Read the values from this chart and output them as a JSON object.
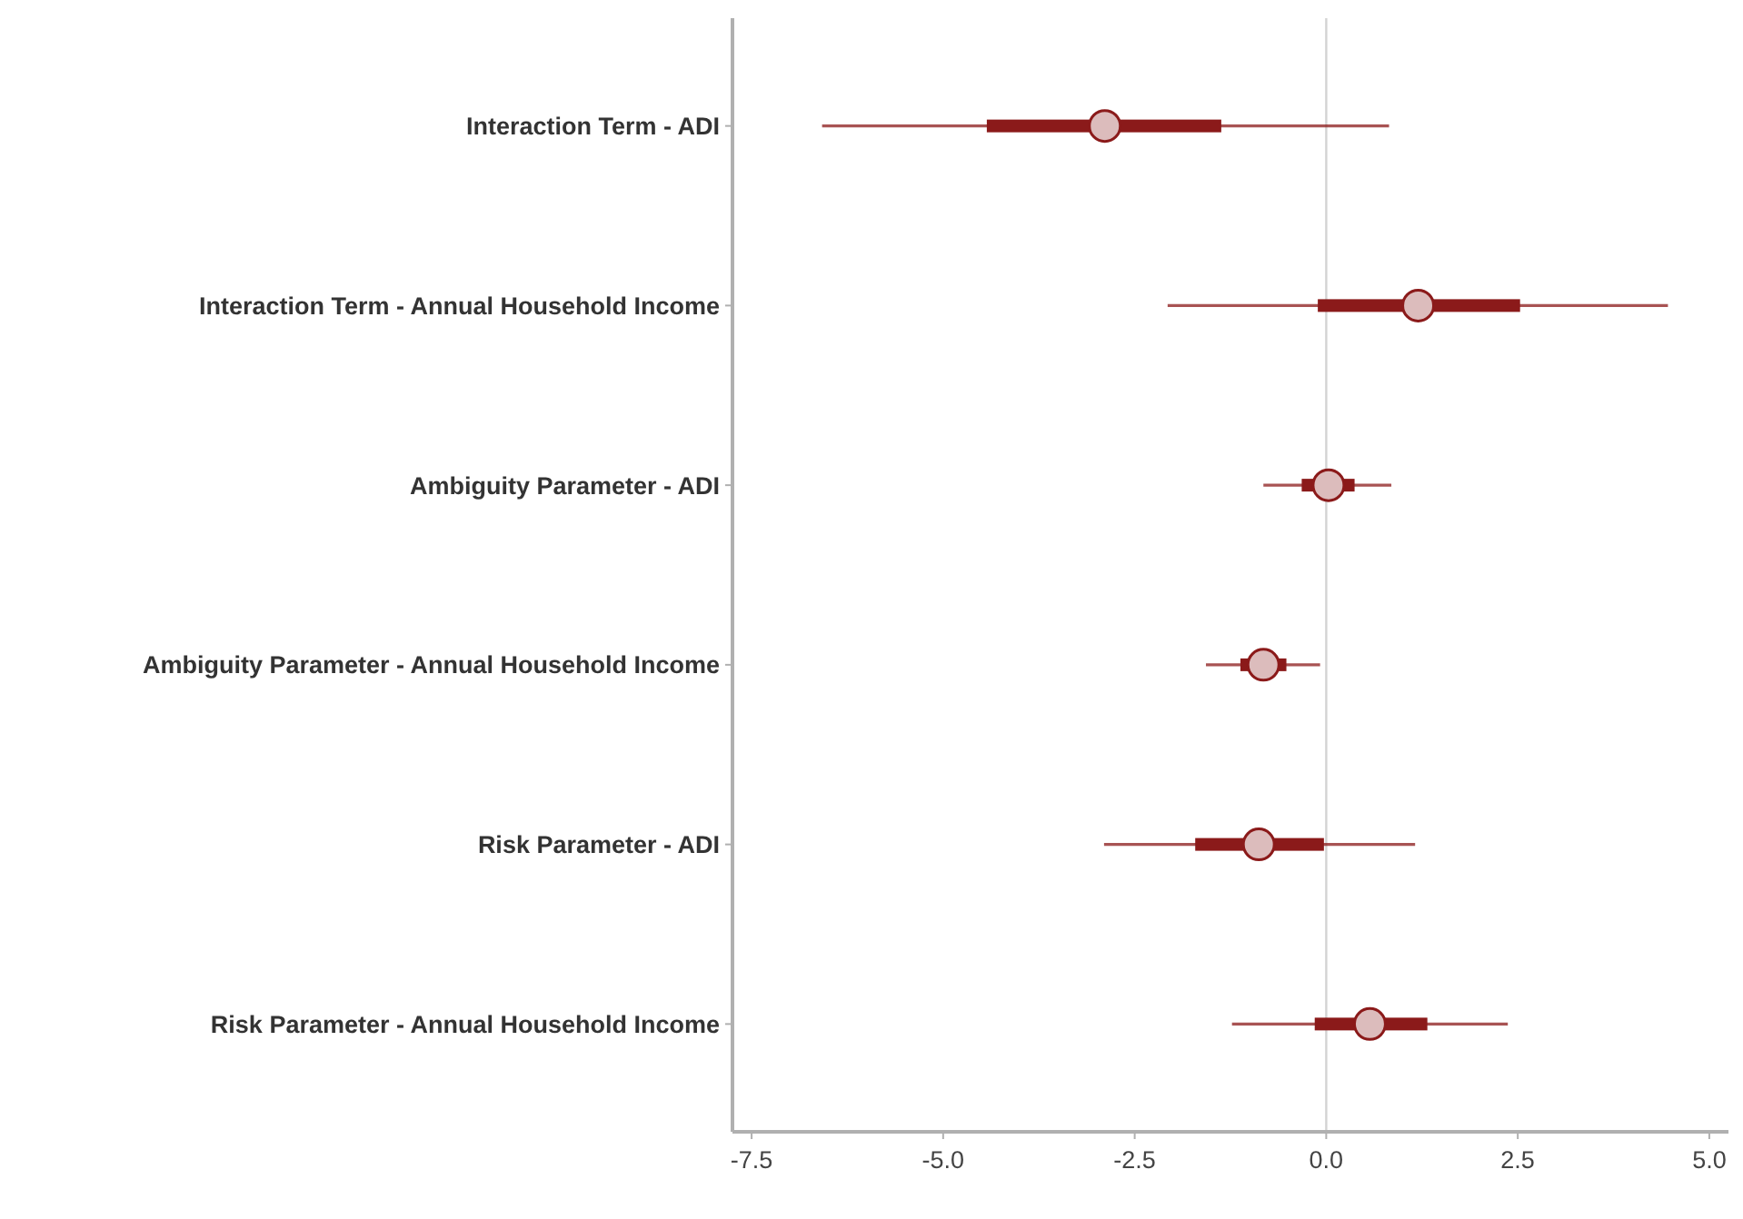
{
  "chart_data": {
    "type": "box",
    "orientation": "horizontal",
    "categories": [
      "Interaction Term - ADI",
      "Interaction Term - Annual Household Income",
      "Ambiguity Parameter - ADI",
      "Ambiguity Parameter - Annual Household Income",
      "Risk Parameter - ADI",
      "Risk Parameter - Annual Household Income"
    ],
    "series": [
      {
        "color": "#8b1a1a",
        "boxes": [
          {
            "low": -6.58,
            "q1": -4.43,
            "median": -2.89,
            "q3": -1.37,
            "high": 0.82
          },
          {
            "low": -2.07,
            "q1": -0.11,
            "median": 1.2,
            "q3": 2.53,
            "high": 4.46
          },
          {
            "low": -0.82,
            "q1": -0.32,
            "median": 0.03,
            "q3": 0.37,
            "high": 0.85
          },
          {
            "low": -1.57,
            "q1": -1.12,
            "median": -0.82,
            "q3": -0.52,
            "high": -0.08
          },
          {
            "low": -2.9,
            "q1": -1.71,
            "median": -0.88,
            "q3": -0.03,
            "high": 1.16
          },
          {
            "low": -1.23,
            "q1": -0.15,
            "median": 0.57,
            "q3": 1.32,
            "high": 2.37
          }
        ]
      }
    ],
    "xlim": [
      -7.75,
      5.25
    ],
    "xticks": [
      {
        "value": -7.5,
        "label": "-7.5"
      },
      {
        "value": -5,
        "label": "-5.0"
      },
      -2.5,
      {
        "value": 0,
        "label": "0.0"
      },
      2.5,
      {
        "value": 5,
        "label": "5.0"
      }
    ],
    "ref_lines": [
      {
        "axis": "x",
        "value": 0,
        "color": "#d3d3d3"
      }
    ],
    "grid": false
  }
}
